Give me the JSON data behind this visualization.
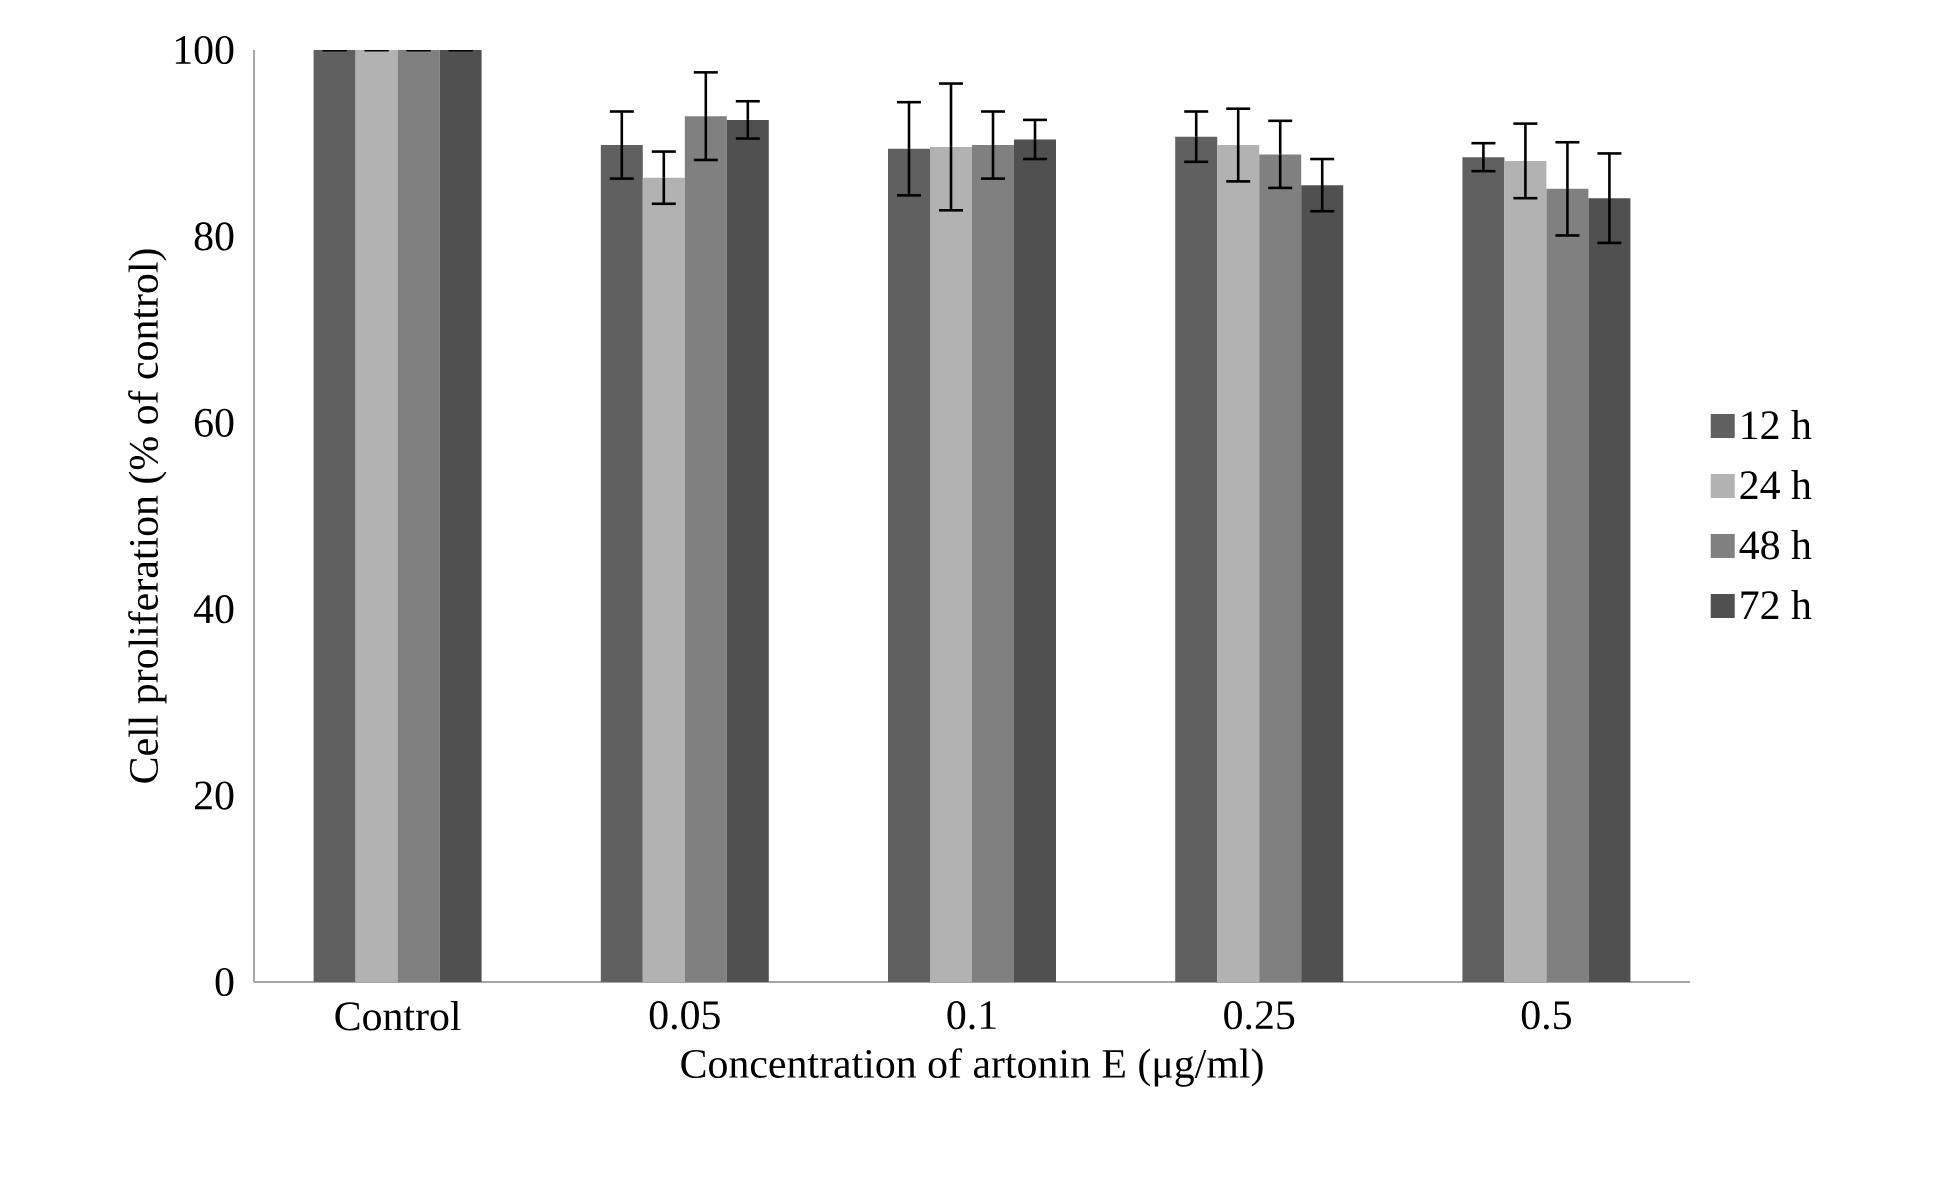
{
  "chart_data": {
    "type": "bar",
    "xlabel": "Concentration of artonin E (μg/ml)",
    "ylabel": "Cell proliferation (% of control)",
    "categories": [
      "Control",
      "0.05",
      "0.1",
      "0.25",
      "0.5"
    ],
    "series": [
      {
        "name": "12 h",
        "color": "#606060",
        "values": [
          100,
          89.8,
          89.4,
          90.7,
          88.5
        ],
        "errors": [
          0,
          3.6,
          5.0,
          2.7,
          1.5
        ]
      },
      {
        "name": "24 h",
        "color": "#b2b2b2",
        "values": [
          100,
          86.3,
          89.6,
          89.8,
          88.1
        ],
        "errors": [
          0,
          2.8,
          6.8,
          3.9,
          4.0
        ]
      },
      {
        "name": "48 h",
        "color": "#808080",
        "values": [
          100,
          92.9,
          89.8,
          88.8,
          85.1
        ],
        "errors": [
          0,
          4.7,
          3.6,
          3.6,
          5.0
        ]
      },
      {
        "name": "72 h",
        "color": "#505050",
        "values": [
          100,
          92.5,
          90.4,
          85.5,
          84.1
        ],
        "errors": [
          0,
          2.0,
          2.1,
          2.8,
          4.8
        ]
      }
    ],
    "ylim": [
      0,
      100
    ],
    "yticks": [
      0,
      20,
      40,
      60,
      80,
      100
    ],
    "grid": false,
    "legend": "right"
  }
}
